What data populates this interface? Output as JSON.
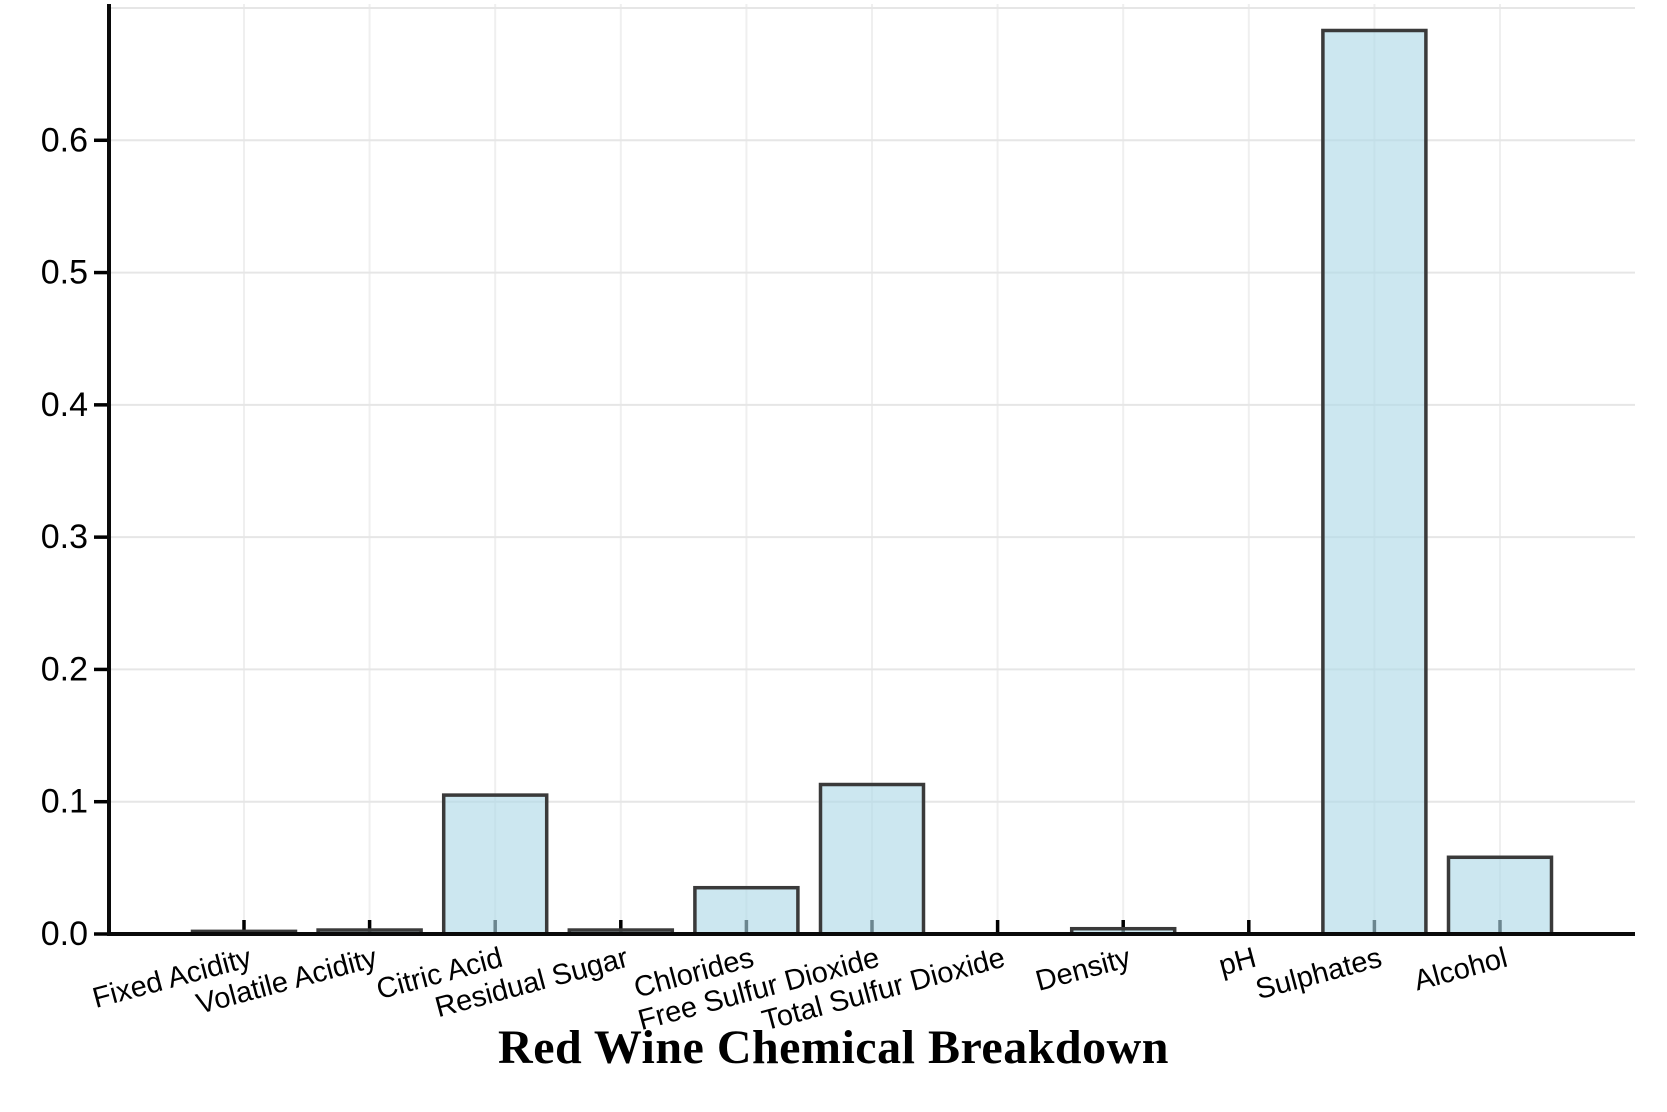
{
  "chart_data": {
    "type": "bar",
    "title": "Red Wine Chemical Breakdown",
    "xlabel": "",
    "ylabel": "",
    "categories": [
      "Fixed Acidity",
      "Volatile Acidity",
      "Citric Acid",
      "Residual Sugar",
      "Chlorides",
      "Free Sulfur Dioxide",
      "Total Sulfur Dioxide",
      "Density",
      "pH",
      "Sulphates",
      "Alcohol"
    ],
    "values": [
      0.002,
      0.003,
      0.105,
      0.003,
      0.035,
      0.113,
      0.0,
      0.004,
      0.0,
      0.683,
      0.058
    ],
    "ylim": [
      0,
      0.7
    ],
    "ytick_labels": [
      "0.0",
      "0.1",
      "0.2",
      "0.3",
      "0.4",
      "0.5",
      "0.6"
    ],
    "ytick_values": [
      0.0,
      0.1,
      0.2,
      0.3,
      0.4,
      0.5,
      0.6
    ],
    "grid_values": [
      0.1,
      0.2,
      0.3,
      0.4,
      0.5,
      0.6,
      0.7
    ],
    "grid": true,
    "legend_position": "none",
    "xtick_label_rotation_deg": -15,
    "colors": {
      "bar_fill": "#ADD8E6",
      "bar_fill_alpha": 0.62,
      "bar_edge": "#3a3a3a",
      "axis_spine": "#0a0a0a",
      "tick_mark": "#000000",
      "grid_horizontal": "#e6e6e6",
      "grid_vertical": "#efefef",
      "text": "#000000",
      "background": "#ffffff"
    }
  }
}
